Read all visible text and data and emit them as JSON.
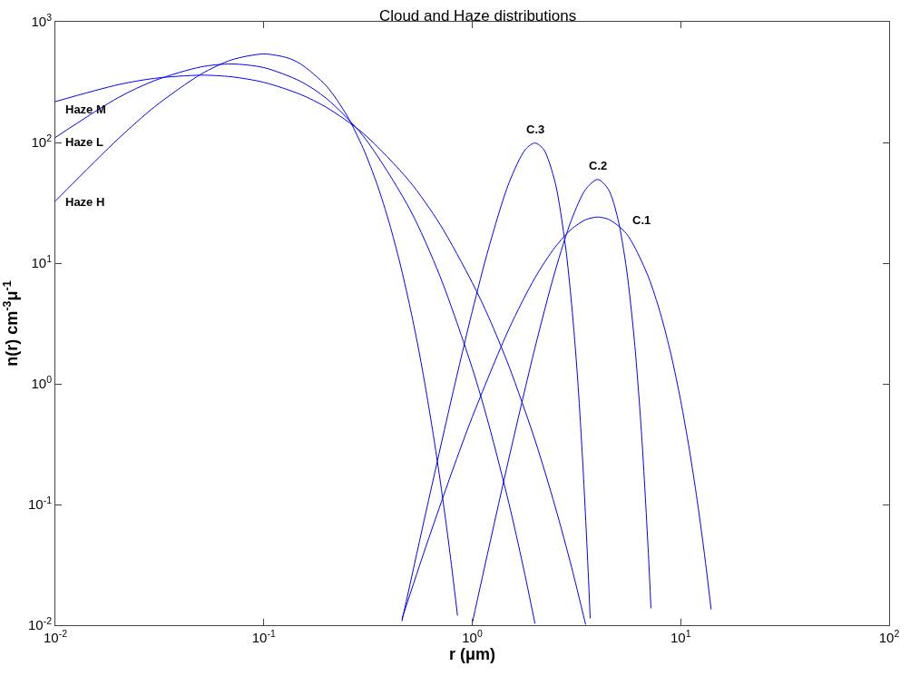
{
  "chart_data": {
    "type": "line",
    "title": "Cloud and Haze distributions",
    "xlabel": "r (μm)",
    "ylabel": "n(r) cm$^{-3}$μ$^{-1}$",
    "log": "xy",
    "legend": false,
    "marker": "none",
    "line_style": "solid",
    "xlim": [
      0.01,
      100
    ],
    "ylim": [
      0.01,
      1000
    ],
    "xticks": [
      {
        "value": 0.01,
        "label": "10$^{-2}$"
      },
      {
        "value": 0.1,
        "label": "10$^{-1}$"
      },
      {
        "value": 1,
        "label": "10$^{0}$"
      },
      {
        "value": 10,
        "label": "10$^{1}$"
      },
      {
        "value": 100,
        "label": "10$^{2}$"
      }
    ],
    "yticks": [
      {
        "value": 0.01,
        "label": "10$^{-2}$"
      },
      {
        "value": 0.1,
        "label": "10$^{-1}$"
      },
      {
        "value": 1,
        "label": "10$^{0}$"
      },
      {
        "value": 10,
        "label": "10$^{1}$"
      },
      {
        "value": 100,
        "label": "10$^{2}$"
      },
      {
        "value": 1000,
        "label": "10$^{3}$"
      }
    ],
    "series": [
      {
        "name": "Haze M",
        "color": "#0000ff",
        "x": [
          0.01,
          0.02,
          0.03,
          0.05,
          0.07,
          0.1,
          0.15,
          0.2,
          0.3,
          0.5,
          0.7,
          1,
          1.2,
          1.5,
          2,
          2.5,
          3,
          3.5
        ],
        "values": [
          218,
          301,
          340,
          361,
          350,
          315,
          250,
          195,
          119,
          47.7,
          21,
          6.9,
          3.56,
          1.4,
          0.342,
          0.096,
          0.03,
          0.0101
        ]
      },
      {
        "name": "Haze L",
        "color": "#0000ff",
        "x": [
          0.01,
          0.02,
          0.03,
          0.05,
          0.07,
          0.1,
          0.15,
          0.2,
          0.3,
          0.5,
          0.7,
          1,
          1.2,
          1.5,
          1.75,
          2
        ],
        "values": [
          110,
          235,
          326,
          423,
          447,
          417,
          321,
          231,
          113,
          28.3,
          7.8,
          1.35,
          0.461,
          0.102,
          0.0314,
          0.0103
        ]
      },
      {
        "name": "Haze H",
        "color": "#0000ff",
        "x": [
          0.01,
          0.02,
          0.03,
          0.05,
          0.07,
          0.1,
          0.13,
          0.15,
          0.2,
          0.25,
          0.3,
          0.35,
          0.4,
          0.45,
          0.5,
          0.55,
          0.6,
          0.65,
          0.7,
          0.75,
          0.8,
          0.85
        ],
        "values": [
          32.7,
          107,
          198,
          368,
          483,
          541,
          502,
          448,
          293,
          168,
          89.2,
          44.7,
          21.5,
          10,
          4.54,
          2.03,
          0.884,
          0.381,
          0.163,
          0.0688,
          0.0288,
          0.012
        ]
      },
      {
        "name": "C.3",
        "color": "#0000ff",
        "x": [
          0.46,
          0.6,
          0.8,
          1,
          1.2,
          1.5,
          1.8,
          2,
          2.2,
          2.5,
          2.8,
          3,
          3.2,
          3.4,
          3.6,
          3.68
        ],
        "values": [
          0.0108,
          0.0868,
          0.786,
          3.98,
          13.4,
          46.2,
          87.6,
          98.9,
          87.7,
          46.4,
          13.9,
          4.5,
          1.13,
          0.203,
          0.0276,
          0.0114
        ]
      },
      {
        "name": "C.2",
        "color": "#0000ff",
        "x": [
          1,
          1.2,
          1.5,
          2,
          2.5,
          3,
          3.5,
          4,
          4.5,
          5,
          5.5,
          6,
          6.5,
          7,
          7.2
        ],
        "values": [
          0.0104,
          0.0434,
          0.242,
          1.99,
          8.63,
          23.1,
          40.9,
          49.4,
          40.9,
          23.2,
          8.86,
          2.25,
          0.372,
          0.0389,
          0.0138
        ]
      },
      {
        "name": "C.1",
        "color": "#0000ff",
        "x": [
          0.46,
          0.6,
          0.8,
          1,
          1.5,
          2,
          2.5,
          3,
          3.5,
          4,
          4.5,
          5,
          5.5,
          6,
          7,
          8,
          9,
          10,
          11,
          12,
          13,
          14
        ],
        "values": [
          0.0113,
          0.045,
          0.187,
          0.53,
          2.85,
          7.56,
          13.6,
          19.2,
          22.9,
          24.1,
          23.1,
          20.5,
          17.5,
          13.7,
          7.69,
          3.82,
          1.73,
          0.726,
          0.287,
          0.108,
          0.0389,
          0.0135
        ]
      }
    ]
  }
}
